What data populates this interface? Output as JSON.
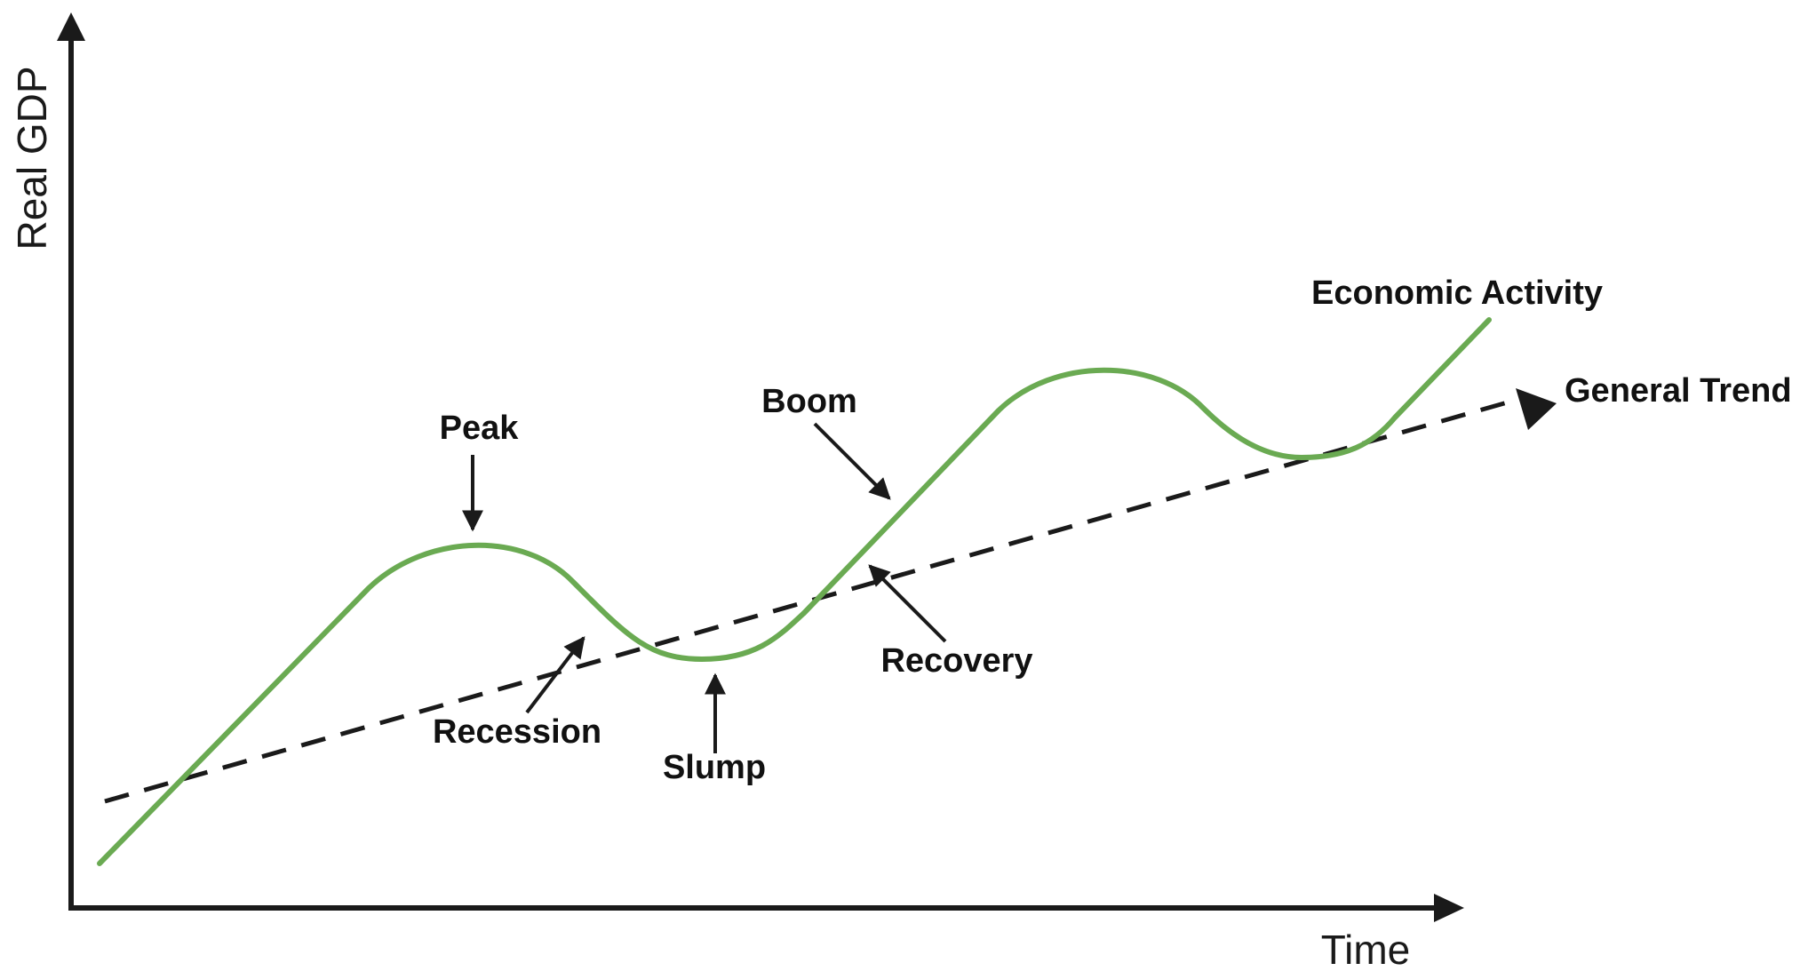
{
  "axes": {
    "x_label": "Time",
    "y_label": "Real GDP"
  },
  "series": {
    "activity_label": "Economic Activity",
    "trend_label": "General Trend"
  },
  "phases": {
    "peak": "Peak",
    "recession": "Recession",
    "slump": "Slump",
    "recovery": "Recovery",
    "boom": "Boom"
  },
  "colors": {
    "activity": "#6aaa52",
    "trend": "#1a1a1a",
    "axis": "#1a1a1a",
    "text": "#111111"
  }
}
